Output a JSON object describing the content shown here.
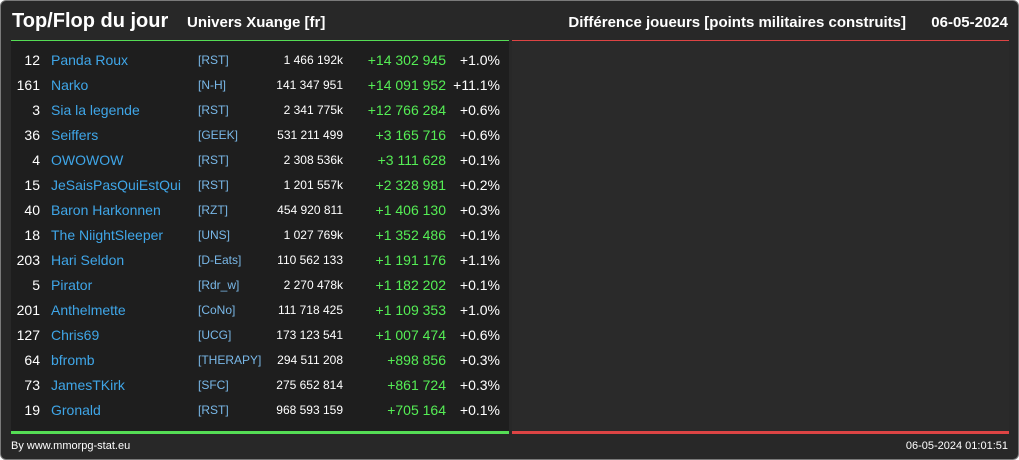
{
  "header": {
    "title": "Top/Flop du jour",
    "subtitle": "Univers Xuange [fr]",
    "metric": "Différence joueurs [points militaires construits]",
    "date": "06-05-2024"
  },
  "colors": {
    "top_bar": "#55dd55",
    "flop_bar": "#dd4444",
    "gain": "#55ee55",
    "player_link": "#3fa6e8"
  },
  "rows": [
    {
      "rank": "12",
      "name": "Panda Roux",
      "alliance": "[RST]",
      "total": "1 466 192k",
      "diff": "+14 302 945",
      "pct": "+1.0%"
    },
    {
      "rank": "161",
      "name": "Narko",
      "alliance": "[N-H]",
      "total": "141 347 951",
      "diff": "+14 091 952",
      "pct": "+11.1%"
    },
    {
      "rank": "3",
      "name": "Sia la legende",
      "alliance": "[RST]",
      "total": "2 341 775k",
      "diff": "+12 766 284",
      "pct": "+0.6%"
    },
    {
      "rank": "36",
      "name": "Seiffers",
      "alliance": "[GEEK]",
      "total": "531 211 499",
      "diff": "+3 165 716",
      "pct": "+0.6%"
    },
    {
      "rank": "4",
      "name": "OWOWOW",
      "alliance": "[RST]",
      "total": "2 308 536k",
      "diff": "+3 111 628",
      "pct": "+0.1%"
    },
    {
      "rank": "15",
      "name": "JeSaisPasQuiEstQui",
      "alliance": "[RST]",
      "total": "1 201 557k",
      "diff": "+2 328 981",
      "pct": "+0.2%"
    },
    {
      "rank": "40",
      "name": "Baron Harkonnen",
      "alliance": "[RZT]",
      "total": "454 920 811",
      "diff": "+1 406 130",
      "pct": "+0.3%"
    },
    {
      "rank": "18",
      "name": "The NiightSleeper",
      "alliance": "[UNS]",
      "total": "1 027 769k",
      "diff": "+1 352 486",
      "pct": "+0.1%"
    },
    {
      "rank": "203",
      "name": "Hari Seldon",
      "alliance": "[D-Eats]",
      "total": "110 562 133",
      "diff": "+1 191 176",
      "pct": "+1.1%"
    },
    {
      "rank": "5",
      "name": "Pirator",
      "alliance": "[Rdr_w]",
      "total": "2 270 478k",
      "diff": "+1 182 202",
      "pct": "+0.1%"
    },
    {
      "rank": "201",
      "name": "Anthelmette",
      "alliance": "[CoNo]",
      "total": "111 718 425",
      "diff": "+1 109 353",
      "pct": "+1.0%"
    },
    {
      "rank": "127",
      "name": "Chris69",
      "alliance": "[UCG]",
      "total": "173 123 541",
      "diff": "+1 007 474",
      "pct": "+0.6%"
    },
    {
      "rank": "64",
      "name": "bfromb",
      "alliance": "[THERAPY]",
      "total": "294 511 208",
      "diff": "+898 856",
      "pct": "+0.3%"
    },
    {
      "rank": "73",
      "name": "JamesTKirk",
      "alliance": "[SFC]",
      "total": "275 652 814",
      "diff": "+861 724",
      "pct": "+0.3%"
    },
    {
      "rank": "19",
      "name": "Gronald",
      "alliance": "[RST]",
      "total": "968 593 159",
      "diff": "+705 164",
      "pct": "+0.1%"
    }
  ],
  "footer": {
    "credit": "By www.mmorpg-stat.eu",
    "timestamp": "06-05-2024 01:01:51"
  }
}
